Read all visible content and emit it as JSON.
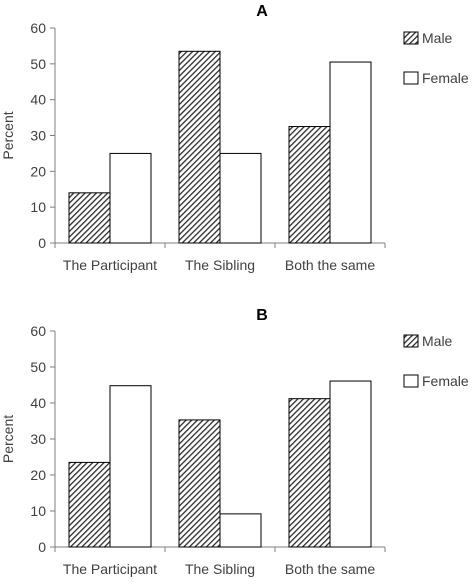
{
  "chart_data": [
    {
      "type": "bar",
      "title": "A",
      "ylabel": "Percent",
      "ylim": [
        0,
        60
      ],
      "yticks": [
        0,
        10,
        20,
        30,
        40,
        50,
        60
      ],
      "categories": [
        "The Participant",
        "The Sibling",
        "Both the same"
      ],
      "series": [
        {
          "name": "Male",
          "values": [
            14,
            53.5,
            32.5
          ],
          "pattern": "hatch"
        },
        {
          "name": "Female",
          "values": [
            25,
            25,
            50.5
          ],
          "pattern": "white"
        }
      ],
      "legend_position": "right"
    },
    {
      "type": "bar",
      "title": "B",
      "ylabel": "Percent",
      "ylim": [
        0,
        60
      ],
      "yticks": [
        0,
        10,
        20,
        30,
        40,
        50,
        60
      ],
      "categories": [
        "The Participant",
        "The Sibling",
        "Both the same"
      ],
      "series": [
        {
          "name": "Male",
          "values": [
            23.5,
            35.3,
            41.2
          ],
          "pattern": "hatch"
        },
        {
          "name": "Female",
          "values": [
            44.8,
            9.2,
            46.1
          ],
          "pattern": "white"
        }
      ],
      "legend_position": "right"
    }
  ],
  "colors": {
    "axis": "#7f7f7f",
    "bar_stroke": "#000000",
    "hatch": "#3a3a3a",
    "female_fill": "#ffffff"
  }
}
